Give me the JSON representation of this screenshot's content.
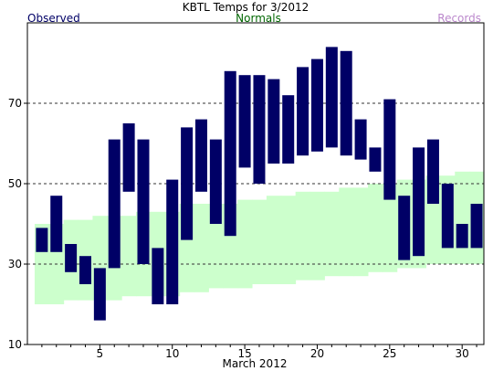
{
  "chart_data": {
    "type": "bar",
    "title": "KBTL Temps for 3/2012",
    "xlabel": "March 2012",
    "ylabel": "",
    "legend": [
      {
        "label": "Observed",
        "color": "#000066",
        "placement": "top-left"
      },
      {
        "label": "Normals",
        "color": "#006600",
        "placement": "top-center"
      },
      {
        "label": "Records",
        "color": "#bb88cc",
        "placement": "top-right"
      }
    ],
    "xlim": [
      0,
      31.5
    ],
    "ylim": [
      10,
      90
    ],
    "x_ticks": [
      5,
      10,
      15,
      20,
      25,
      30
    ],
    "y_ticks": [
      10,
      30,
      50,
      70
    ],
    "gridlines_y": [
      30,
      50,
      70
    ],
    "days": [
      1,
      2,
      3,
      4,
      5,
      6,
      7,
      8,
      9,
      10,
      11,
      12,
      13,
      14,
      15,
      16,
      17,
      18,
      19,
      20,
      21,
      22,
      23,
      24,
      25,
      26,
      27,
      28,
      29,
      30,
      31
    ],
    "series": [
      {
        "name": "Observed",
        "color": "#000066",
        "high": [
          39,
          47,
          35,
          32,
          29,
          61,
          65,
          61,
          34,
          51,
          64,
          66,
          61,
          78,
          77,
          77,
          76,
          72,
          79,
          81,
          84,
          83,
          66,
          59,
          71,
          47,
          59,
          61,
          50,
          40,
          45
        ],
        "low": [
          33,
          33,
          28,
          25,
          16,
          29,
          48,
          30,
          20,
          20,
          36,
          48,
          40,
          37,
          54,
          50,
          55,
          55,
          57,
          58,
          59,
          57,
          56,
          53,
          46,
          31,
          32,
          45,
          34,
          34,
          34
        ]
      },
      {
        "name": "Normals",
        "color": "#ccffcc",
        "high": [
          40,
          40,
          41,
          41,
          42,
          42,
          42,
          43,
          43,
          43,
          45,
          45,
          45,
          45,
          46,
          46,
          47,
          47,
          48,
          48,
          48,
          49,
          49,
          50,
          50,
          51,
          51,
          52,
          52,
          53,
          53
        ],
        "low": [
          20,
          20,
          21,
          21,
          21,
          21,
          22,
          22,
          22,
          22,
          23,
          23,
          24,
          24,
          24,
          25,
          25,
          25,
          26,
          26,
          27,
          27,
          27,
          28,
          28,
          29,
          29,
          30,
          30,
          30,
          30
        ]
      }
    ]
  }
}
